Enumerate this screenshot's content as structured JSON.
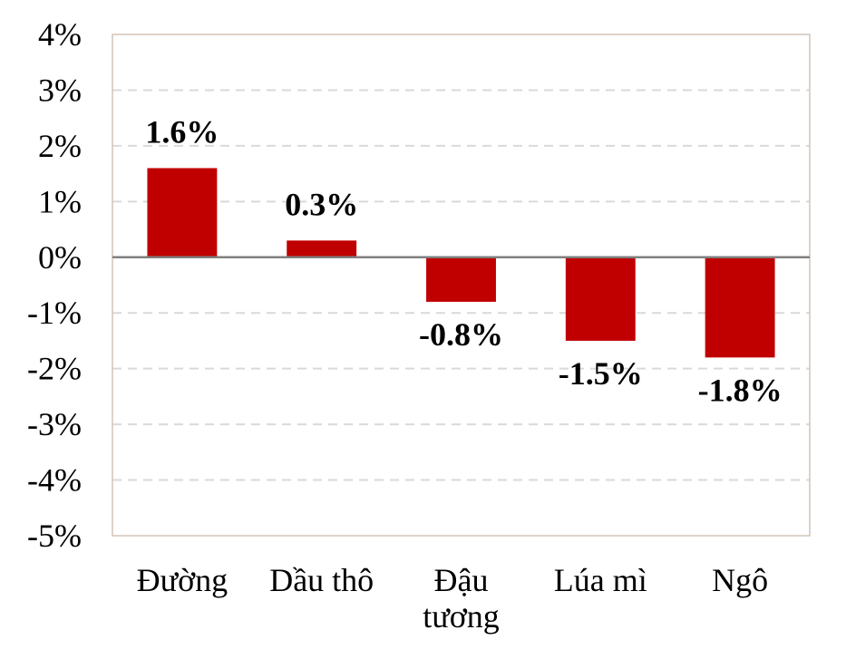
{
  "chart_data": {
    "type": "bar",
    "categories": [
      [
        "Đường"
      ],
      [
        "Dầu thô"
      ],
      [
        "Đậu",
        "tương"
      ],
      [
        "Lúa mì"
      ],
      [
        "Ngô"
      ]
    ],
    "values": [
      1.6,
      0.3,
      -0.8,
      -1.5,
      -1.8
    ],
    "data_labels": [
      "1.6%",
      "0.3%",
      "-0.8%",
      "-1.5%",
      "-1.8%"
    ],
    "ylim": [
      -5,
      4
    ],
    "yticks": [
      4,
      3,
      2,
      1,
      0,
      -1,
      -2,
      -3,
      -4,
      -5
    ],
    "ytick_labels": [
      "4%",
      "3%",
      "2%",
      "1%",
      "0%",
      "-1%",
      "-2%",
      "-3%",
      "-4%",
      "-5%"
    ],
    "bar_color": "#C00000",
    "grid": true,
    "grid_color": "#D9D9D9",
    "frame_color": "#D2C4B8",
    "zero_line_color": "#808080",
    "legend": "none"
  }
}
